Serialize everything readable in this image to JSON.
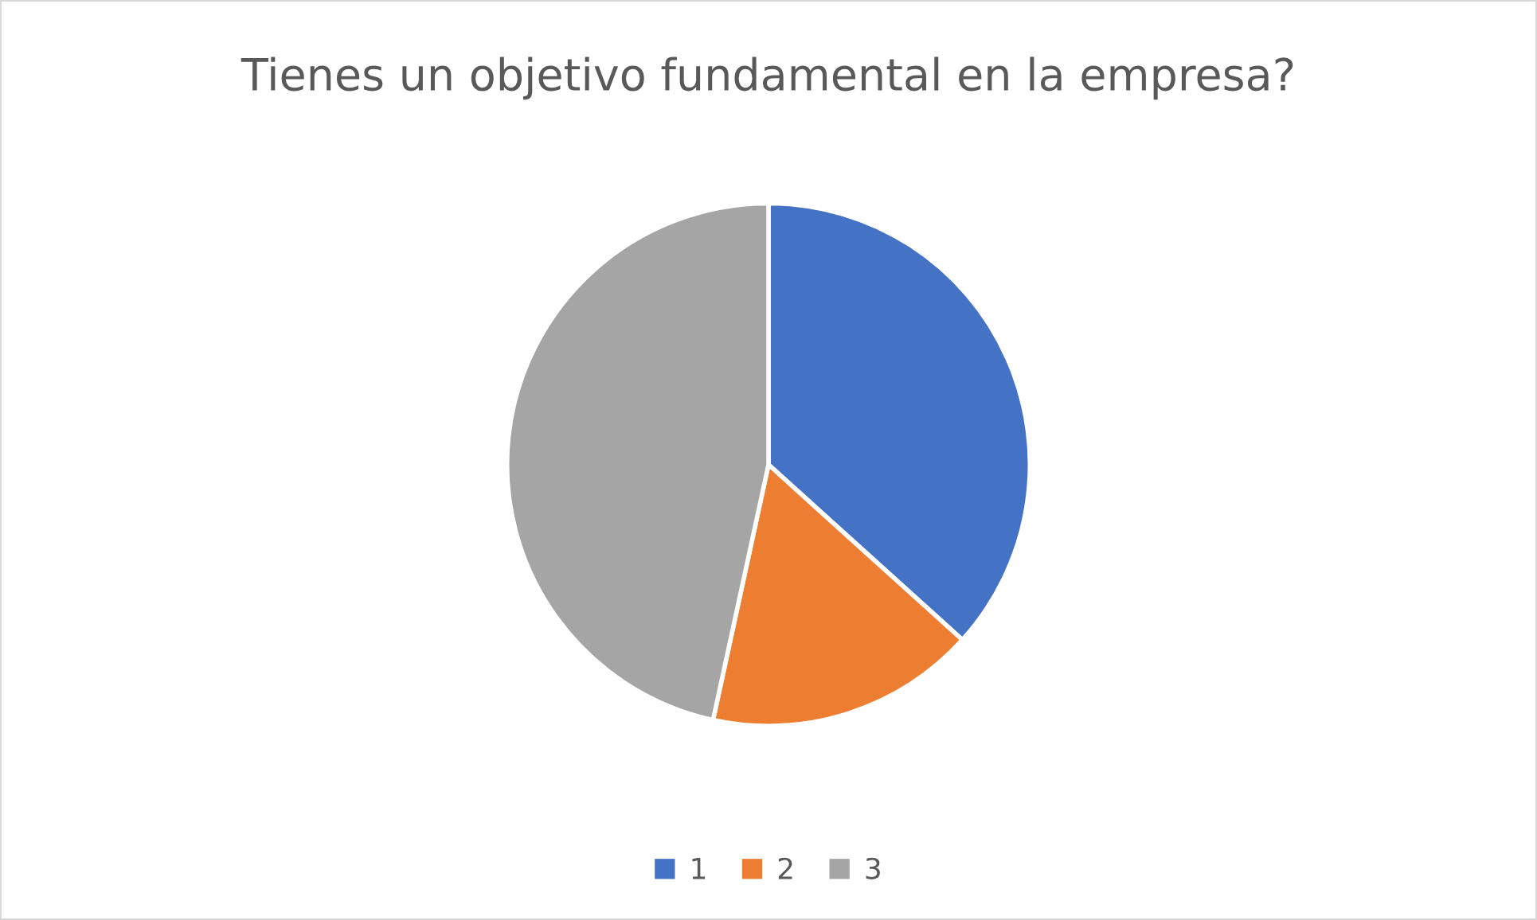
{
  "chart_data": {
    "type": "pie",
    "title": "Tienes un objetivo fundamental en la empresa?",
    "categories": [
      "1",
      "2",
      "3"
    ],
    "values": [
      36.7,
      16.7,
      46.6
    ],
    "colors": [
      "#4472c4",
      "#ed7d31",
      "#a5a5a5"
    ],
    "legend": "bottom"
  }
}
